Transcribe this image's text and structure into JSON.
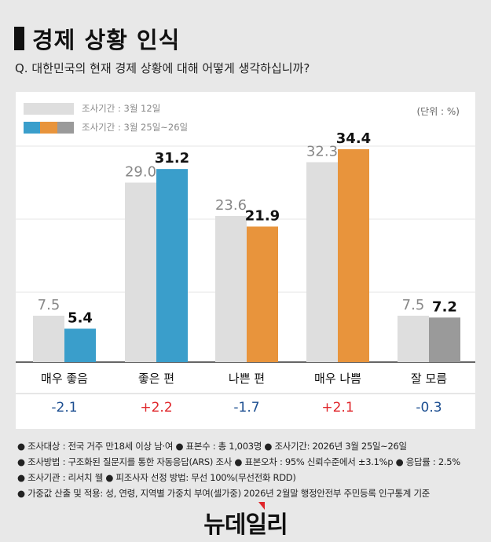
{
  "header": {
    "title": "경제 상황 인식",
    "question": "Q. 대한민국의 현재 경제 상황에 대해 어떻게 생각하십니까?"
  },
  "legend": {
    "previous": "조사기간 : 3월 12일",
    "current": "조사기간 : 3월 25일~26일",
    "unit": "(단위 : %)"
  },
  "colors": {
    "previous": "#dedede",
    "blue": "#3a9ecb",
    "orange": "#e8943c",
    "gray": "#9a9a9a",
    "positive": "#e0262b",
    "negative": "#1d4f91"
  },
  "chart_data": {
    "type": "bar",
    "categories": [
      "매우 좋음",
      "좋은 편",
      "나쁜 편",
      "매우 나쁨",
      "잘 모름"
    ],
    "series": [
      {
        "name": "조사기간 : 3월 12일",
        "values": [
          7.5,
          29.0,
          23.6,
          32.3,
          7.5
        ]
      },
      {
        "name": "조사기간 : 3월 25일~26일",
        "values": [
          5.4,
          31.2,
          21.9,
          34.4,
          7.2
        ]
      }
    ],
    "current_colors": [
      "blue",
      "blue",
      "orange",
      "orange",
      "gray"
    ],
    "changes": [
      "-2.1",
      "+2.2",
      "-1.7",
      "+2.1",
      "-0.3"
    ],
    "ylim": [
      0,
      35
    ],
    "grid": true
  },
  "notes": [
    "● 조사대상 : 전국 거주 만18세 이상 남·여 ● 표본수 : 총 1,003명 ● 조사기간: 2026년 3월 25일~26일",
    "● 조사방법 : 구조화된 질문지를 통한 자동응답(ARS) 조사 ● 표본오차 : 95% 신뢰수준에서 ±3.1%p ● 응답률 : 2.5%",
    "● 조사기관 : 리서치 웰 ● 피조사자 선정 방법: 무선 100%(무선전화 RDD)",
    "● 가중값 산출 및 적용: 성, 연령, 지역별 가중치 부여(셀가중) 2026년 2월말 행정안전부 주민등록 인구통계 기준"
  ],
  "logo": "뉴데일리"
}
